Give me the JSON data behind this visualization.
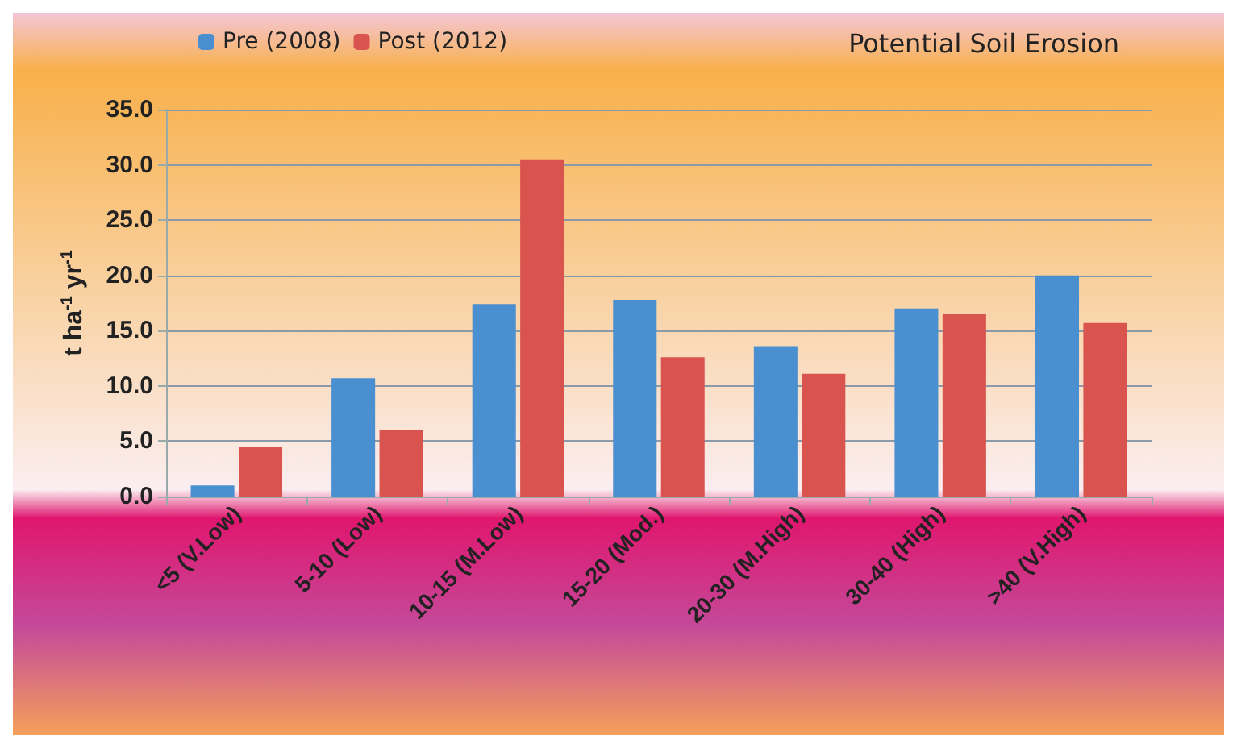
{
  "chart_data": {
    "type": "bar",
    "title": "Potential Soil Erosion",
    "ylabel": "t ha$^{-1}$ yr$^{-1}$",
    "categories": [
      "<5 (V.Low)",
      "5-10 (Low)",
      "10-15 (M.Low)",
      "15-20 (Mod.)",
      "20-30 (M.High)",
      "30-40 (High)",
      ">40 (V.High)"
    ],
    "series": [
      {
        "name": "Pre (2008)",
        "color": "#4a8fd0",
        "values": [
          1.0,
          10.7,
          17.4,
          17.8,
          13.6,
          17.0,
          20.0
        ]
      },
      {
        "name": "Post (2012)",
        "color": "#d9534f",
        "values": [
          4.5,
          6.0,
          30.5,
          12.6,
          11.1,
          16.5,
          15.7
        ]
      }
    ],
    "ylim": [
      0,
      35
    ],
    "yticks": [
      {
        "value": 0,
        "label": "0.0"
      },
      {
        "value": 5,
        "label": "5.0"
      },
      {
        "value": 10,
        "label": "10.0"
      },
      {
        "value": 15,
        "label": "15.0"
      },
      {
        "value": 20,
        "label": "20.0"
      },
      {
        "value": 25,
        "label": "25.0"
      },
      {
        "value": 30,
        "label": "30.0"
      },
      {
        "value": 35,
        "label": "35.0"
      }
    ],
    "grid": "y",
    "legend": "top left"
  }
}
